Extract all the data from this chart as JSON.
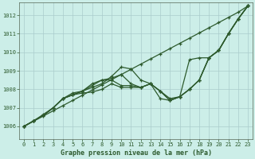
{
  "title": "Graphe pression niveau de la mer (hPa)",
  "background_color": "#cceee8",
  "grid_color": "#aacccc",
  "line_color": "#2d5a2d",
  "xlim": [
    -0.5,
    23.5
  ],
  "ylim": [
    1005.3,
    1012.7
  ],
  "yticks": [
    1006,
    1007,
    1008,
    1009,
    1010,
    1011,
    1012
  ],
  "xticks": [
    0,
    1,
    2,
    3,
    4,
    5,
    6,
    7,
    8,
    9,
    10,
    11,
    12,
    13,
    14,
    15,
    16,
    17,
    18,
    19,
    20,
    21,
    22,
    23
  ],
  "series": [
    [
      1006.0,
      1006.3,
      1006.6,
      1007.0,
      1007.5,
      1007.7,
      1007.9,
      1008.1,
      1008.3,
      1008.7,
      1009.2,
      1009.1,
      1008.5,
      1008.3,
      1007.5,
      1007.4,
      1007.6,
      1009.6,
      1009.7,
      1009.7,
      1010.1,
      1011.0,
      1011.8,
      1012.5
    ],
    [
      1006.0,
      1006.3,
      1006.6,
      1007.0,
      1007.5,
      1007.7,
      1007.9,
      1008.2,
      1008.5,
      1008.6,
      1008.8,
      1008.3,
      1008.1,
      1008.3,
      1007.9,
      1007.5,
      1007.6,
      1008.0,
      1008.5,
      1009.7,
      1010.1,
      1011.0,
      1011.8,
      1012.5
    ],
    [
      1006.0,
      1006.3,
      1006.6,
      1007.0,
      1007.5,
      1007.8,
      1007.9,
      1008.3,
      1008.5,
      1008.5,
      1008.2,
      1008.2,
      1008.1,
      1008.3,
      1007.9,
      1007.4,
      1007.6,
      1008.0,
      1008.5,
      1009.7,
      1010.1,
      1011.0,
      1011.8,
      1012.5
    ],
    [
      1006.0,
      1006.3,
      1006.65,
      1007.0,
      1007.5,
      1007.7,
      1007.8,
      1007.85,
      1008.0,
      1008.3,
      1008.1,
      1008.1,
      1008.1,
      1008.3,
      1007.9,
      1007.4,
      1007.6,
      1008.0,
      1008.5,
      1009.7,
      1010.1,
      1011.0,
      1011.8,
      1012.5
    ]
  ],
  "series_linear": [
    1006.0,
    1006.28,
    1006.56,
    1006.84,
    1007.12,
    1007.4,
    1007.68,
    1007.96,
    1008.24,
    1008.52,
    1008.8,
    1009.08,
    1009.36,
    1009.64,
    1009.92,
    1010.2,
    1010.48,
    1010.76,
    1011.04,
    1011.32,
    1011.6,
    1011.88,
    1012.16,
    1012.5
  ]
}
